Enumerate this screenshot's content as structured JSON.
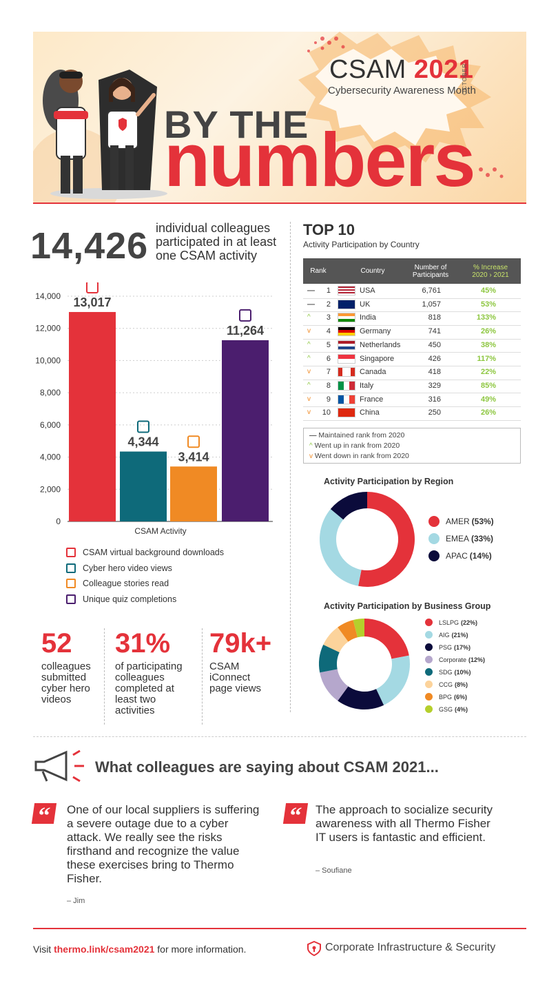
{
  "header": {
    "csam": "CSAM",
    "year": "2021",
    "subtitle": "Cybersecurity Awareness Month",
    "month": "OCTOBER",
    "line1": "BY THE",
    "line2": "numbers"
  },
  "headline": {
    "value": "14,426",
    "description": "individual colleagues participated in at least one CSAM activity"
  },
  "legend": [
    {
      "label": "CSAM virtual background downloads",
      "icon": "laptop-user-icon",
      "color": "#e4323a"
    },
    {
      "label": "Cyber hero video views",
      "icon": "video-player-icon",
      "color": "#0e6a7a"
    },
    {
      "label": "Colleague stories read",
      "icon": "open-book-icon",
      "color": "#f08a24"
    },
    {
      "label": "Unique quiz completions",
      "icon": "question-bubble-icon",
      "color": "#4b1e6e"
    }
  ],
  "stats": [
    {
      "value": "52",
      "text": "colleagues submitted cyber hero videos"
    },
    {
      "value": "31%",
      "text": "of participating colleagues completed at least two activities"
    },
    {
      "value": "79k+",
      "text": "CSAM iConnect page views"
    }
  ],
  "top10": {
    "title": "TOP 10",
    "subtitle": "Activity Participation by Country",
    "headers": {
      "rank": "Rank",
      "country": "Country",
      "participants": "Number of Participants",
      "increase": "% Increase",
      "increase_range": "2020 › 2021"
    },
    "rows": [
      {
        "trend": "—",
        "rank": "1",
        "country": "USA",
        "participants": "6,761",
        "increase": "45%",
        "flag": "usa"
      },
      {
        "trend": "—",
        "rank": "2",
        "country": "UK",
        "participants": "1,057",
        "increase": "53%",
        "flag": "uk"
      },
      {
        "trend": "^",
        "rank": "3",
        "country": "India",
        "participants": "818",
        "increase": "133%",
        "flag": "india"
      },
      {
        "trend": "v",
        "rank": "4",
        "country": "Germany",
        "participants": "741",
        "increase": "26%",
        "flag": "germany"
      },
      {
        "trend": "^",
        "rank": "5",
        "country": "Netherlands",
        "participants": "450",
        "increase": "38%",
        "flag": "netherlands"
      },
      {
        "trend": "^",
        "rank": "6",
        "country": "Singapore",
        "participants": "426",
        "increase": "117%",
        "flag": "singapore"
      },
      {
        "trend": "v",
        "rank": "7",
        "country": "Canada",
        "participants": "418",
        "increase": "22%",
        "flag": "canada"
      },
      {
        "trend": "^",
        "rank": "8",
        "country": "Italy",
        "participants": "329",
        "increase": "85%",
        "flag": "italy"
      },
      {
        "trend": "v",
        "rank": "9",
        "country": "France",
        "participants": "316",
        "increase": "49%",
        "flag": "france"
      },
      {
        "trend": "v",
        "rank": "10",
        "country": "China",
        "participants": "250",
        "increase": "26%",
        "flag": "china"
      }
    ],
    "legend": [
      "Maintained rank from 2020",
      "Went up in rank from 2020",
      "Went down in rank from 2020"
    ]
  },
  "quotes": {
    "title": "What colleagues are saying about CSAM 2021...",
    "items": [
      {
        "text": "One of our local suppliers is suffering a severe outage due to a cyber attack. We really see the risks firsthand and recognize the value these exercises bring to Thermo Fisher.",
        "author": "– Jim"
      },
      {
        "text": "The approach to socialize security awareness with all Thermo Fisher IT users is fantastic and efficient.",
        "author": "– Soufiane"
      }
    ]
  },
  "footer": {
    "visit": "Visit",
    "link": "thermo.link/csam2021",
    "more": "for more information.",
    "org": "Corporate Infrastructure & Security"
  },
  "colors": {
    "brand_red": "#e4323a",
    "teal": "#0e6a7a",
    "orange": "#f08a24",
    "purple": "#4b1e6e",
    "green": "#8cc63e"
  },
  "chart_data": [
    {
      "type": "bar",
      "xlabel": "CSAM Activity",
      "categories": [
        "CSAM virtual background downloads",
        "Cyber hero video views",
        "Colleague stories read",
        "Unique quiz completions"
      ],
      "values": [
        13017,
        4344,
        3414,
        11264
      ],
      "value_labels": [
        "13,017",
        "4,344",
        "3,414",
        "11,264"
      ],
      "colors": [
        "#e4323a",
        "#0e6a7a",
        "#f08a24",
        "#4b1e6e"
      ],
      "ylim": [
        0,
        14000
      ],
      "yticks": [
        "0",
        "2,000",
        "4,000",
        "6,000",
        "8,000",
        "10,000",
        "12,000",
        "14,000"
      ],
      "grid": true,
      "legend": "bottom"
    },
    {
      "type": "pie",
      "title": "Activity Participation by Region",
      "labels": [
        "AMER",
        "EMEA",
        "APAC"
      ],
      "pct_labels": [
        "(53%)",
        "(33%)",
        "(14%)"
      ],
      "values": [
        53,
        33,
        14
      ],
      "colors": [
        "#e4323a",
        "#a4d9e3",
        "#0b0b3b"
      ],
      "legend": "right"
    },
    {
      "type": "pie",
      "title": "Activity Participation by Business Group",
      "labels": [
        "LSLPG",
        "AIG",
        "PSG",
        "Corporate",
        "SDG",
        "CCG",
        "BPG",
        "GSG"
      ],
      "pct_labels": [
        "(22%)",
        "(21%)",
        "(17%)",
        "(12%)",
        "(10%)",
        "(8%)",
        "(6%)",
        "(4%)"
      ],
      "values": [
        22,
        21,
        17,
        12,
        10,
        8,
        6,
        4
      ],
      "colors": [
        "#e4323a",
        "#a4d9e3",
        "#0b0b3b",
        "#b5a7cc",
        "#0e6a7a",
        "#fcd39b",
        "#f08a24",
        "#b5cf2c"
      ],
      "legend": "right"
    }
  ]
}
